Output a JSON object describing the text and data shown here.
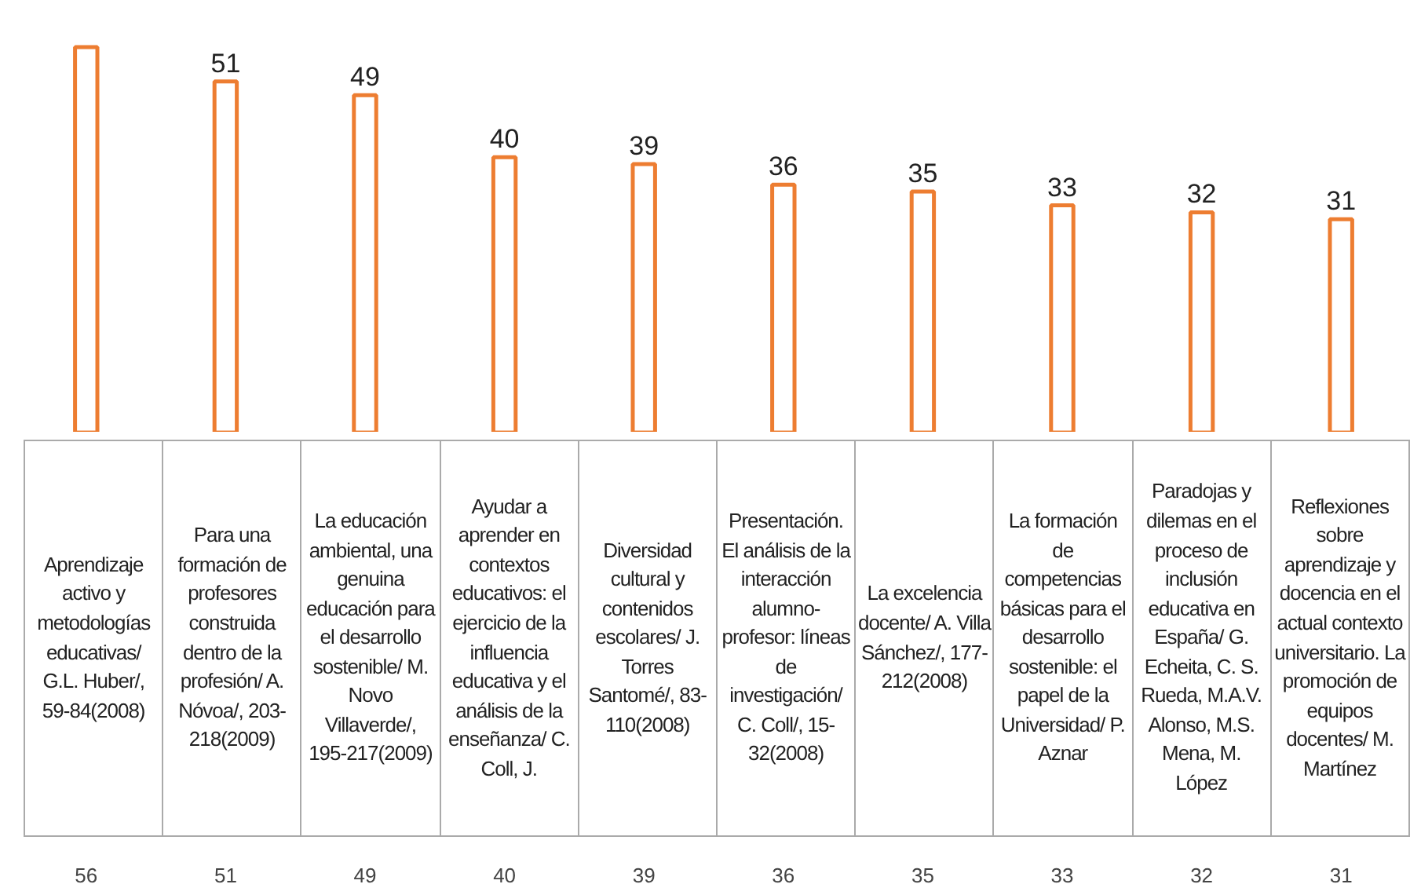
{
  "chart_data": {
    "type": "bar",
    "categories": [
      "Aprendizaje activo y metodologías educativas/ G.L. Huber/, 59-84(2008)",
      "Para una formación de profesores construida dentro de la profesión/ A. Nóvoa/, 203-218(2009)",
      "La educación ambiental, una genuina educación para el desarrollo sostenible/ M. Novo Villaverde/, 195-217(2009)",
      "Ayudar a aprender en contextos educativos: el ejercicio de la influencia educativa y el análisis de la enseñanza/ C. Coll, J.",
      "Diversidad cultural y contenidos escolares/ J. Torres Santomé/, 83-110(2008)",
      "Presentación. El análisis de la interacción alumno-profesor: líneas de investigación/ C. Coll/, 15-32(2008)",
      "La excelencia docente/ A. Villa Sánchez/, 177-212(2008)",
      "La formación de competencias básicas para el desarrollo sostenible: el papel de la Universidad/ P. Aznar",
      "Paradojas y dilemas en el proceso de inclusión educativa en España/ G. Echeita, C. S. Rueda, M.A.V. Alonso, M.S. Mena, M. López",
      "Reflexiones sobre aprendizaje y docencia en el actual contexto universitario. La promoción de equipos docentes/ M. Martínez"
    ],
    "values": [
      56,
      51,
      49,
      40,
      39,
      36,
      35,
      33,
      32,
      31
    ],
    "color": "#ed7d31",
    "value_labels": [
      null,
      "51",
      "49",
      "40",
      "39",
      "36",
      "35",
      "33",
      "32",
      "31"
    ],
    "annotations": [
      "56",
      "51",
      "49",
      "40",
      "39",
      "36",
      "35",
      "33",
      "32",
      "31"
    ],
    "grid": false
  }
}
